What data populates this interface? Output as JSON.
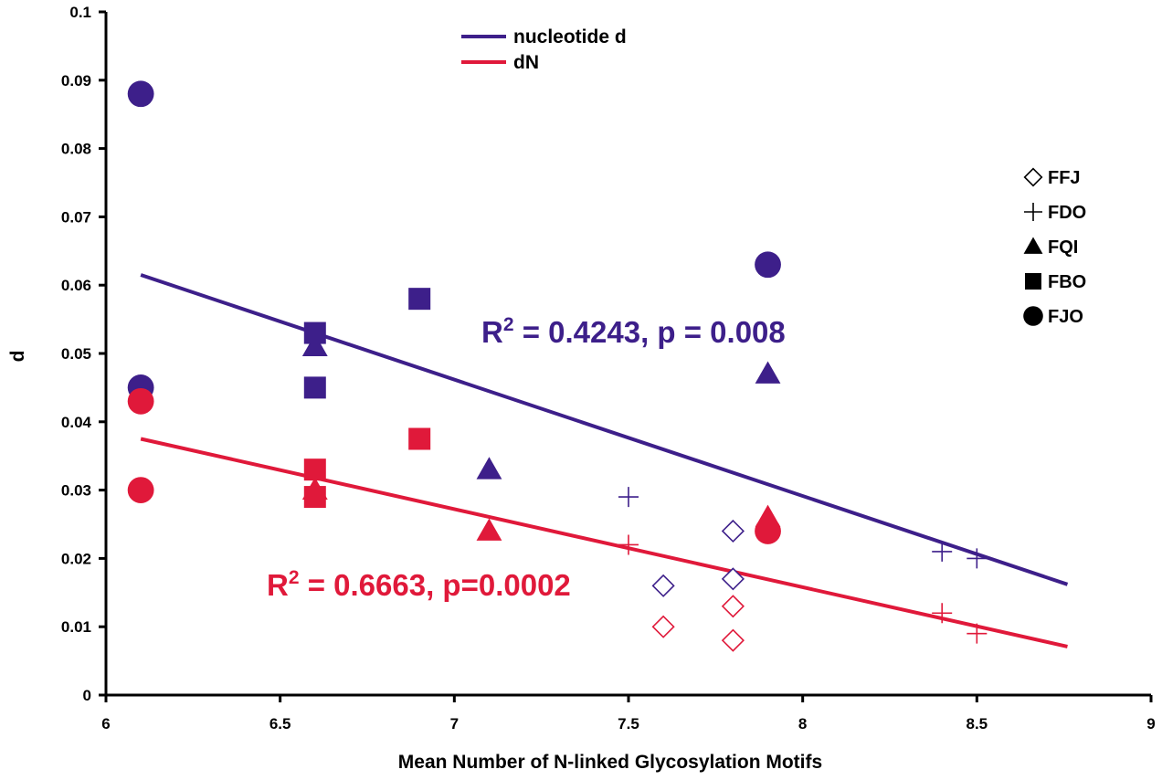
{
  "chart_data": {
    "type": "scatter",
    "xlabel": "Mean Number of N-linked Glycosylation Motifs",
    "ylabel": "d",
    "xlim": [
      6,
      9
    ],
    "ylim": [
      0,
      0.1
    ],
    "xticks": [
      "6",
      "6.5",
      "7",
      "7.5",
      "8",
      "8.5",
      "9"
    ],
    "yticks": [
      "0",
      "0.01",
      "0.02",
      "0.03",
      "0.04",
      "0.05",
      "0.06",
      "0.07",
      "0.08",
      "0.09",
      "0.1"
    ],
    "grid": false,
    "colors": {
      "nucleotide_d": "#3d1f8a",
      "dN": "#e0193a",
      "marker_legend": "#000000"
    },
    "line_legend": [
      {
        "key": "nucleotide_d",
        "label": "nucleotide d"
      },
      {
        "key": "dN",
        "label": "dN"
      }
    ],
    "marker_legend": [
      {
        "shape": "diamond",
        "label": "FFJ"
      },
      {
        "shape": "plus",
        "label": "FDO"
      },
      {
        "shape": "triangle",
        "label": "FQI"
      },
      {
        "shape": "square",
        "label": "FBO"
      },
      {
        "shape": "circle",
        "label": "FJO"
      }
    ],
    "series": [
      {
        "key": "nucleotide_d",
        "label": "nucleotide d",
        "trendline": {
          "x": [
            6.1,
            8.76
          ],
          "y": [
            0.0615,
            0.0162
          ]
        },
        "annotation": "R² = 0.4243, p = 0.008",
        "points": [
          {
            "group": "FJO",
            "shape": "circle",
            "x": 6.1,
            "y": 0.088
          },
          {
            "group": "FJO",
            "shape": "circle",
            "x": 6.1,
            "y": 0.045
          },
          {
            "group": "FJO",
            "shape": "circle",
            "x": 7.9,
            "y": 0.063
          },
          {
            "group": "FBO",
            "shape": "square",
            "x": 6.6,
            "y": 0.053
          },
          {
            "group": "FBO",
            "shape": "square",
            "x": 6.6,
            "y": 0.045
          },
          {
            "group": "FBO",
            "shape": "square",
            "x": 6.9,
            "y": 0.058
          },
          {
            "group": "FQI",
            "shape": "triangle",
            "x": 6.6,
            "y": 0.051
          },
          {
            "group": "FQI",
            "shape": "triangle",
            "x": 7.1,
            "y": 0.033
          },
          {
            "group": "FQI",
            "shape": "triangle",
            "x": 7.9,
            "y": 0.047
          },
          {
            "group": "FDO",
            "shape": "plus",
            "x": 7.5,
            "y": 0.029
          },
          {
            "group": "FDO",
            "shape": "plus",
            "x": 8.4,
            "y": 0.021
          },
          {
            "group": "FDO",
            "shape": "plus",
            "x": 8.5,
            "y": 0.02
          },
          {
            "group": "FFJ",
            "shape": "diamond",
            "x": 7.6,
            "y": 0.016
          },
          {
            "group": "FFJ",
            "shape": "diamond",
            "x": 7.8,
            "y": 0.024
          },
          {
            "group": "FFJ",
            "shape": "diamond",
            "x": 7.8,
            "y": 0.017
          }
        ]
      },
      {
        "key": "dN",
        "label": "dN",
        "trendline": {
          "x": [
            6.1,
            8.76
          ],
          "y": [
            0.0375,
            0.0071
          ]
        },
        "annotation": "R² = 0.6663, p=0.0002",
        "points": [
          {
            "group": "FJO",
            "shape": "circle",
            "x": 6.1,
            "y": 0.043
          },
          {
            "group": "FJO",
            "shape": "circle",
            "x": 6.1,
            "y": 0.03
          },
          {
            "group": "FJO",
            "shape": "circle",
            "x": 7.9,
            "y": 0.024
          },
          {
            "group": "FBO",
            "shape": "square",
            "x": 6.6,
            "y": 0.033
          },
          {
            "group": "FBO",
            "shape": "square",
            "x": 6.6,
            "y": 0.029
          },
          {
            "group": "FBO",
            "shape": "square",
            "x": 6.9,
            "y": 0.0375
          },
          {
            "group": "FQI",
            "shape": "triangle",
            "x": 6.6,
            "y": 0.03
          },
          {
            "group": "FQI",
            "shape": "triangle",
            "x": 7.1,
            "y": 0.024
          },
          {
            "group": "FQI",
            "shape": "triangle",
            "x": 7.9,
            "y": 0.026
          },
          {
            "group": "FDO",
            "shape": "plus",
            "x": 7.5,
            "y": 0.022
          },
          {
            "group": "FDO",
            "shape": "plus",
            "x": 8.4,
            "y": 0.012
          },
          {
            "group": "FDO",
            "shape": "plus",
            "x": 8.5,
            "y": 0.009
          },
          {
            "group": "FFJ",
            "shape": "diamond",
            "x": 7.6,
            "y": 0.01
          },
          {
            "group": "FFJ",
            "shape": "diamond",
            "x": 7.8,
            "y": 0.013
          },
          {
            "group": "FFJ",
            "shape": "diamond",
            "x": 7.8,
            "y": 0.008
          }
        ]
      }
    ]
  }
}
